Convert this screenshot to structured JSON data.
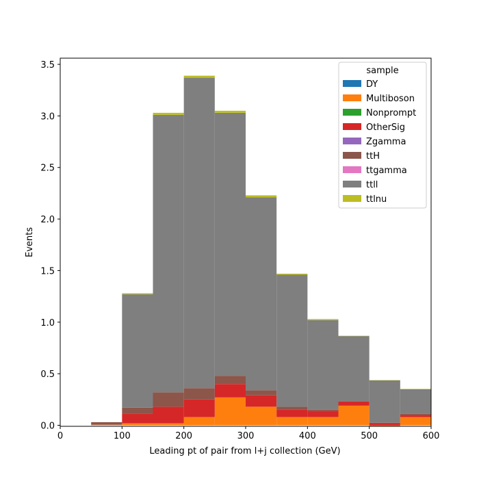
{
  "chart_data": {
    "type": "bar",
    "stacked": true,
    "xlabel": "Leading pt of pair from l+j collection (GeV)",
    "ylabel": "Events",
    "xlim": [
      0,
      600
    ],
    "ylim": [
      -0.01,
      3.56
    ],
    "xticks": [
      0,
      100,
      200,
      300,
      400,
      500,
      600
    ],
    "yticks": [
      0.0,
      0.5,
      1.0,
      1.5,
      2.0,
      2.5,
      3.0,
      3.5
    ],
    "grid": false,
    "legend": {
      "title": "sample",
      "placement": "top-right"
    },
    "bin_edges": [
      0,
      50,
      100,
      150,
      200,
      250,
      300,
      350,
      400,
      450,
      500,
      550,
      600
    ],
    "series": [
      {
        "name": "DY",
        "color": "#1f77b4",
        "values": [
          0,
          0,
          0,
          0,
          0,
          0,
          0,
          0,
          0,
          0,
          0,
          0
        ]
      },
      {
        "name": "Multiboson",
        "color": "#ff7f0e",
        "values": [
          0,
          0.005,
          0.02,
          0.02,
          0.08,
          0.27,
          0.18,
          0.08,
          0.08,
          0.19,
          -0.01,
          0.08
        ]
      },
      {
        "name": "Nonprompt",
        "color": "#2ca02c",
        "values": [
          0,
          0,
          0,
          0,
          0,
          0,
          0,
          0,
          0,
          0,
          0,
          0
        ]
      },
      {
        "name": "OtherSig",
        "color": "#d62728",
        "values": [
          0,
          0,
          0.09,
          0.16,
          0.17,
          0.13,
          0.11,
          0.07,
          0.06,
          0.04,
          0.02,
          0.02
        ]
      },
      {
        "name": "Zgamma",
        "color": "#9467bd",
        "values": [
          0,
          0,
          0,
          0,
          0,
          0,
          0,
          0,
          0,
          0,
          0,
          0
        ]
      },
      {
        "name": "ttH",
        "color": "#8c564b",
        "values": [
          0,
          0.025,
          0.06,
          0.14,
          0.11,
          0.08,
          0.05,
          0.03,
          0.01,
          0.005,
          0.005,
          0.01
        ]
      },
      {
        "name": "ttgamma",
        "color": "#e377c2",
        "values": [
          0,
          0,
          0,
          0,
          0,
          0,
          0,
          0,
          0,
          0,
          0,
          0
        ]
      },
      {
        "name": "ttll",
        "color": "#7f7f7f",
        "values": [
          0,
          0,
          1.1,
          2.69,
          3.01,
          2.55,
          1.87,
          1.28,
          0.87,
          0.63,
          0.41,
          0.24
        ]
      },
      {
        "name": "ttlnu",
        "color": "#bcbd22",
        "values": [
          0,
          0,
          0.01,
          0.02,
          0.02,
          0.02,
          0.02,
          0.01,
          0.01,
          0.003,
          0.003,
          0.003
        ]
      }
    ]
  }
}
